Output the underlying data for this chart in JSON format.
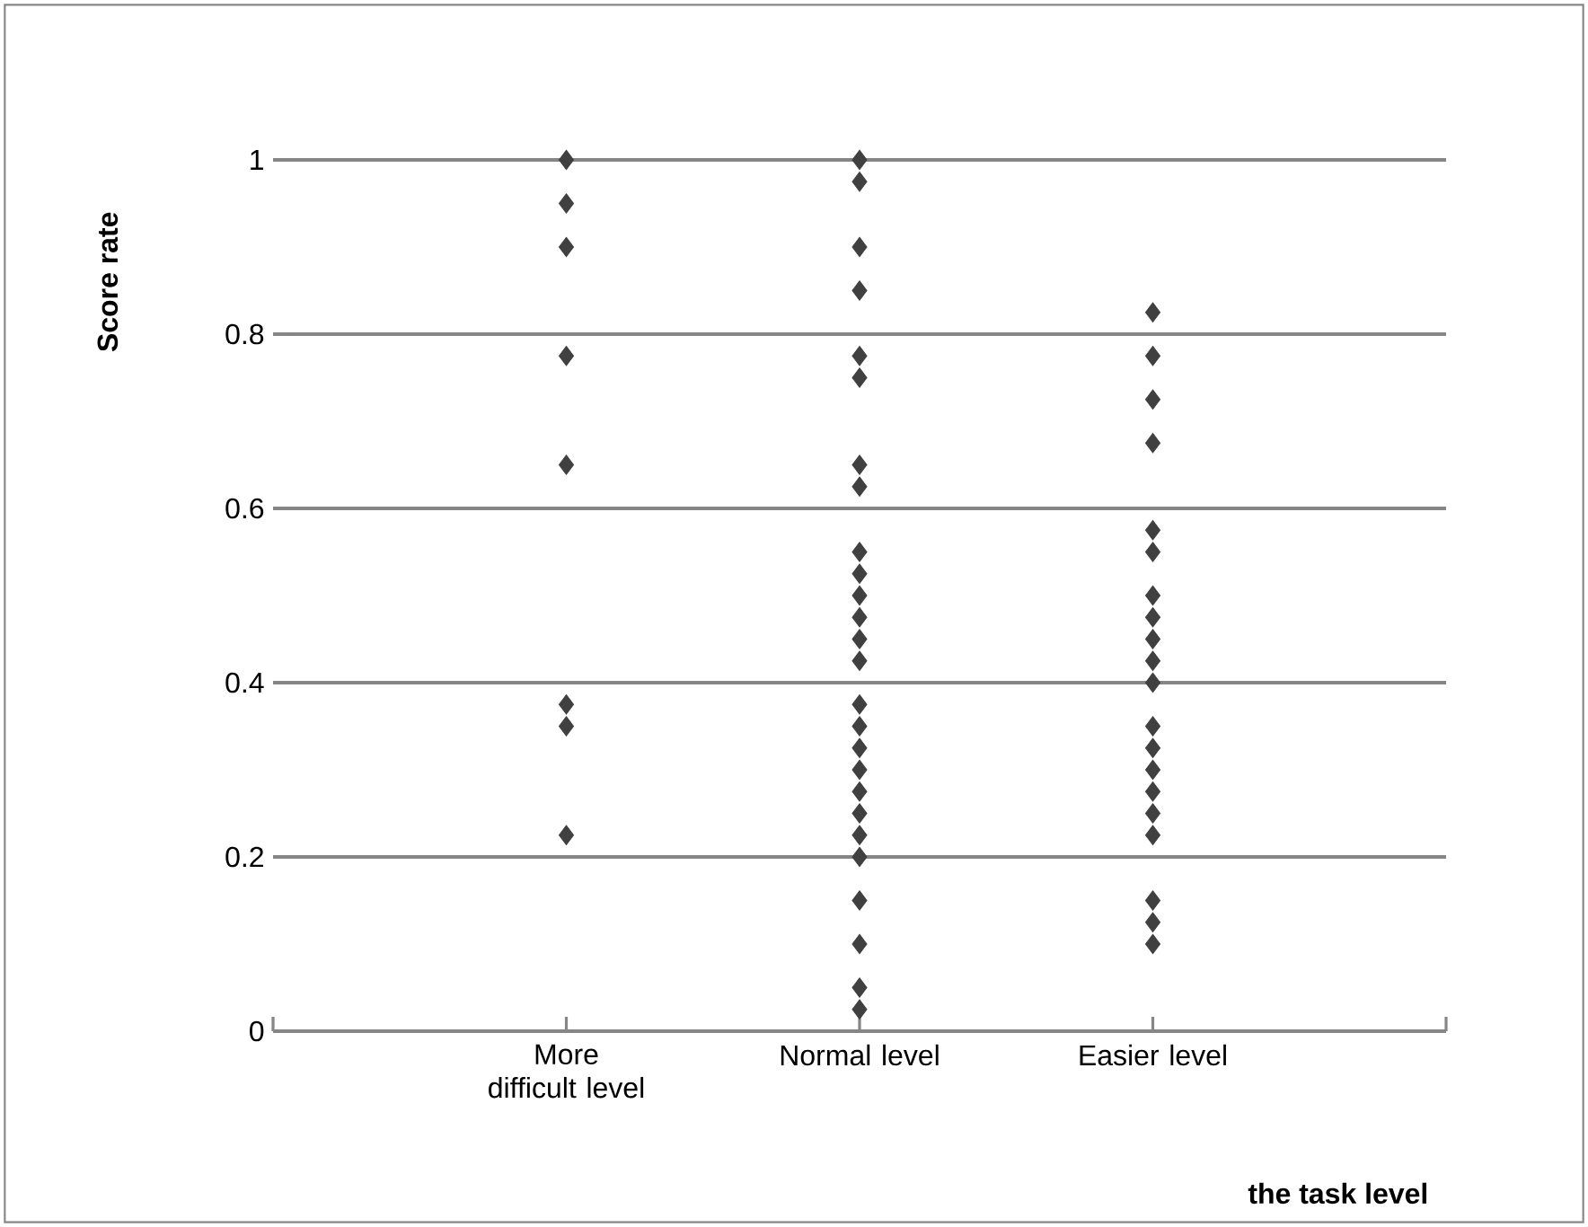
{
  "chart_data": {
    "type": "scatter",
    "xlabel": "the task level",
    "ylabel": "Score rate",
    "categories": [
      "More difficult level",
      "Normal level",
      "Easier level"
    ],
    "series": [
      {
        "color": "#404040",
        "x": [
          "More difficult level",
          "More difficult level",
          "More difficult level",
          "More difficult level",
          "More difficult level",
          "More difficult level",
          "More difficult level",
          "More difficult level"
        ],
        "values": [
          1,
          0.95,
          0.9,
          0.775,
          0.65,
          0.375,
          0.35,
          0.225
        ]
      },
      {
        "color": "#404040",
        "x": [
          "Normal level",
          "Normal level",
          "Normal level",
          "Normal level",
          "Normal level",
          "Normal level",
          "Normal level",
          "Normal level",
          "Normal level",
          "Normal level",
          "Normal level",
          "Normal level",
          "Normal level",
          "Normal level",
          "Normal level",
          "Normal level",
          "Normal level",
          "Normal level",
          "Normal level",
          "Normal level",
          "Normal level",
          "Normal level",
          "Normal level",
          "Normal level",
          "Normal level",
          "Normal level"
        ],
        "values": [
          1,
          0.975,
          0.9,
          0.85,
          0.775,
          0.75,
          0.65,
          0.625,
          0.55,
          0.525,
          0.5,
          0.475,
          0.45,
          0.425,
          0.375,
          0.35,
          0.325,
          0.3,
          0.275,
          0.25,
          0.225,
          0.2,
          0.15,
          0.1,
          0.05,
          0.025
        ]
      },
      {
        "color": "#404040",
        "x": [
          "Easier level",
          "Easier level",
          "Easier level",
          "Easier level",
          "Easier level",
          "Easier level",
          "Easier level",
          "Easier level",
          "Easier level",
          "Easier level",
          "Easier level",
          "Easier level",
          "Easier level",
          "Easier level",
          "Easier level",
          "Easier level",
          "Easier level",
          "Easier level",
          "Easier level",
          "Easier level"
        ],
        "values": [
          0.825,
          0.775,
          0.725,
          0.675,
          0.575,
          0.55,
          0.5,
          0.475,
          0.45,
          0.425,
          0.4,
          0.35,
          0.325,
          0.3,
          0.275,
          0.25,
          0.225,
          0.15,
          0.125,
          0.1
        ]
      }
    ],
    "ylim": [
      0,
      1
    ],
    "yticks": [
      0,
      0.2,
      0.4,
      0.6,
      0.8,
      1
    ],
    "grid": "y",
    "marker": "diamond"
  }
}
